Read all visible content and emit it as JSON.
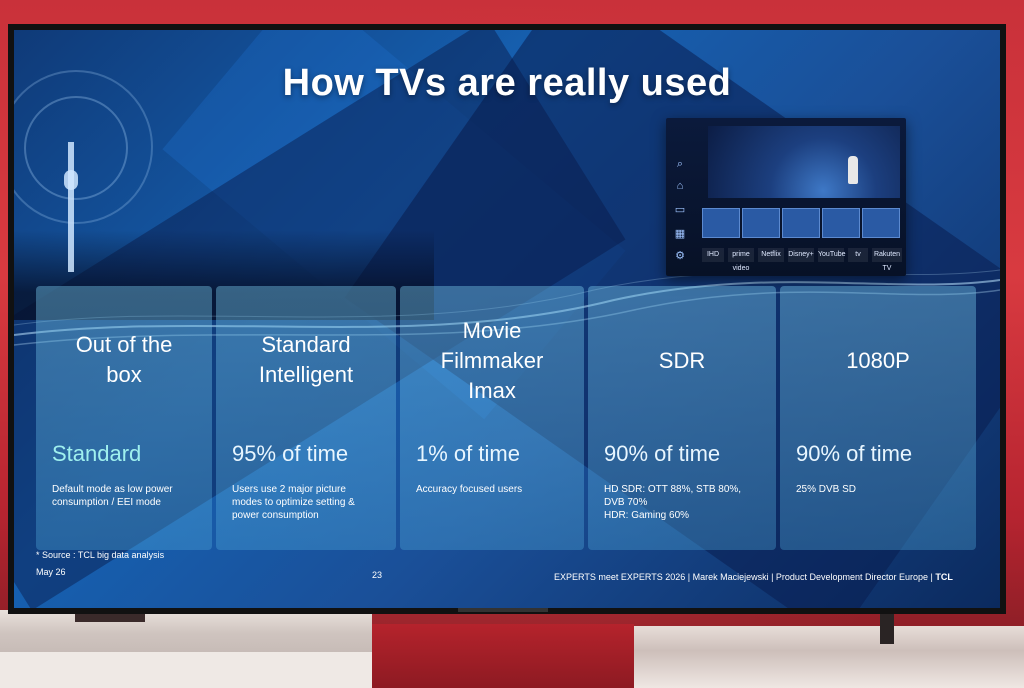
{
  "slide": {
    "title": "How TVs are really used",
    "cards": [
      {
        "heading_lines": [
          "Out of the",
          "box"
        ],
        "value": "Standard",
        "description_lines": [
          "Default mode as low power",
          "consumption / EEI mode"
        ]
      },
      {
        "heading_lines": [
          "Standard",
          "Intelligent"
        ],
        "value": "95% of time",
        "description_lines": [
          "Users use 2 major picture",
          "modes to optimize setting &",
          "power consumption"
        ]
      },
      {
        "heading_lines": [
          "Movie",
          "Filmmaker",
          "Imax"
        ],
        "value": "1% of time",
        "description_lines": [
          "Accuracy focused users"
        ]
      },
      {
        "heading_lines": [
          "SDR"
        ],
        "value": "90% of time",
        "description_lines": [
          "HD SDR: OTT 88%, STB 80%,",
          "DVB 70%",
          "HDR: Gaming 60%"
        ]
      },
      {
        "heading_lines": [
          "1080P"
        ],
        "value": "90% of time",
        "description_lines": [
          "25% DVB SD"
        ]
      }
    ],
    "source": "* Source : TCL big data analysis",
    "date": "May 26",
    "page_number": "23",
    "credit": "EXPERTS meet EXPERTS 2026 | Marek Maciejewski | Product Development Director Europe |",
    "logo": "TCL"
  },
  "mini_ui": {
    "apps": [
      "IHD",
      "prime video",
      "Netflix",
      "Disney+",
      "YouTube",
      "tv",
      "Rakuten TV"
    ]
  },
  "colors": {
    "screen_blue": "#1660b0",
    "card_value_highlight": "#9ff0ee",
    "wall_red": "#d83a40"
  }
}
